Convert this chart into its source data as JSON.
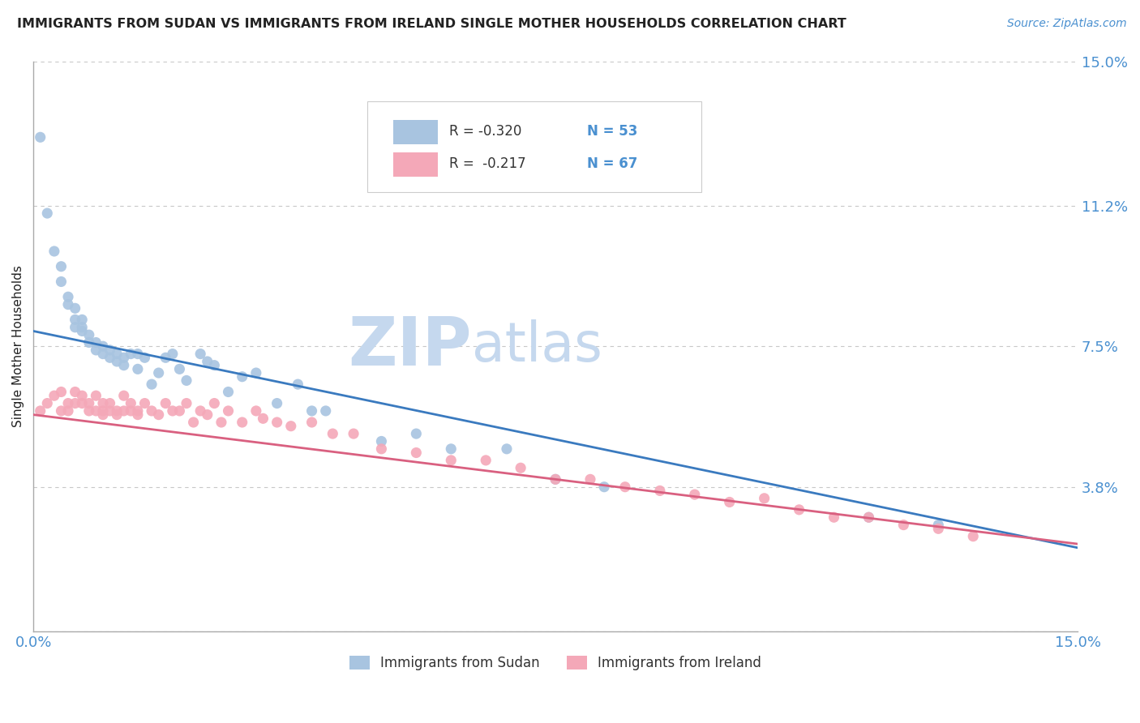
{
  "title": "IMMIGRANTS FROM SUDAN VS IMMIGRANTS FROM IRELAND SINGLE MOTHER HOUSEHOLDS CORRELATION CHART",
  "source_text": "Source: ZipAtlas.com",
  "ylabel": "Single Mother Households",
  "y_tick_values": [
    0.0,
    0.038,
    0.075,
    0.112,
    0.15
  ],
  "y_tick_labels": [
    "",
    "3.8%",
    "7.5%",
    "11.2%",
    "15.0%"
  ],
  "xlim": [
    0.0,
    0.15
  ],
  "ylim": [
    0.0,
    0.15
  ],
  "color_sudan": "#a8c4e0",
  "color_ireland": "#f4a8b8",
  "line_color_sudan": "#3a7abf",
  "line_color_ireland": "#d96080",
  "watermark_zip": "ZIP",
  "watermark_atlas": "atlas",
  "background_color": "#ffffff",
  "grid_color": "#c8c8c8",
  "title_color": "#222222",
  "tick_label_color": "#4a90d0",
  "watermark_color_zip": "#c5d8ee",
  "watermark_color_atlas": "#c5d8ee",
  "legend_bottom_labels": [
    "Immigrants from Sudan",
    "Immigrants from Ireland"
  ],
  "sudan_scatter_x": [
    0.001,
    0.002,
    0.003,
    0.004,
    0.004,
    0.005,
    0.005,
    0.006,
    0.006,
    0.006,
    0.007,
    0.007,
    0.007,
    0.008,
    0.008,
    0.009,
    0.009,
    0.01,
    0.01,
    0.011,
    0.011,
    0.012,
    0.012,
    0.013,
    0.013,
    0.014,
    0.015,
    0.015,
    0.016,
    0.017,
    0.018,
    0.019,
    0.02,
    0.021,
    0.022,
    0.024,
    0.025,
    0.026,
    0.028,
    0.03,
    0.032,
    0.035,
    0.038,
    0.04,
    0.042,
    0.05,
    0.055,
    0.06,
    0.068,
    0.075,
    0.082,
    0.12,
    0.13
  ],
  "sudan_scatter_y": [
    0.13,
    0.11,
    0.1,
    0.096,
    0.092,
    0.088,
    0.086,
    0.085,
    0.082,
    0.08,
    0.082,
    0.08,
    0.079,
    0.078,
    0.076,
    0.076,
    0.074,
    0.075,
    0.073,
    0.074,
    0.072,
    0.073,
    0.071,
    0.072,
    0.07,
    0.073,
    0.073,
    0.069,
    0.072,
    0.065,
    0.068,
    0.072,
    0.073,
    0.069,
    0.066,
    0.073,
    0.071,
    0.07,
    0.063,
    0.067,
    0.068,
    0.06,
    0.065,
    0.058,
    0.058,
    0.05,
    0.052,
    0.048,
    0.048,
    0.04,
    0.038,
    0.03,
    0.028
  ],
  "ireland_scatter_x": [
    0.001,
    0.002,
    0.003,
    0.004,
    0.004,
    0.005,
    0.005,
    0.006,
    0.006,
    0.007,
    0.007,
    0.008,
    0.008,
    0.009,
    0.009,
    0.01,
    0.01,
    0.01,
    0.011,
    0.011,
    0.012,
    0.012,
    0.013,
    0.013,
    0.014,
    0.014,
    0.015,
    0.015,
    0.016,
    0.017,
    0.018,
    0.019,
    0.02,
    0.021,
    0.022,
    0.023,
    0.024,
    0.025,
    0.026,
    0.027,
    0.028,
    0.03,
    0.032,
    0.033,
    0.035,
    0.037,
    0.04,
    0.043,
    0.046,
    0.05,
    0.055,
    0.06,
    0.065,
    0.07,
    0.075,
    0.08,
    0.085,
    0.09,
    0.095,
    0.1,
    0.105,
    0.11,
    0.115,
    0.12,
    0.125,
    0.13,
    0.135
  ],
  "ireland_scatter_y": [
    0.058,
    0.06,
    0.062,
    0.063,
    0.058,
    0.06,
    0.058,
    0.063,
    0.06,
    0.062,
    0.06,
    0.06,
    0.058,
    0.062,
    0.058,
    0.06,
    0.058,
    0.057,
    0.058,
    0.06,
    0.058,
    0.057,
    0.062,
    0.058,
    0.06,
    0.058,
    0.058,
    0.057,
    0.06,
    0.058,
    0.057,
    0.06,
    0.058,
    0.058,
    0.06,
    0.055,
    0.058,
    0.057,
    0.06,
    0.055,
    0.058,
    0.055,
    0.058,
    0.056,
    0.055,
    0.054,
    0.055,
    0.052,
    0.052,
    0.048,
    0.047,
    0.045,
    0.045,
    0.043,
    0.04,
    0.04,
    0.038,
    0.037,
    0.036,
    0.034,
    0.035,
    0.032,
    0.03,
    0.03,
    0.028,
    0.027,
    0.025
  ],
  "sudan_line_x0": 0.0,
  "sudan_line_x1": 0.15,
  "sudan_line_y0": 0.079,
  "sudan_line_y1": 0.022,
  "ireland_line_x0": 0.0,
  "ireland_line_x1": 0.15,
  "ireland_line_y0": 0.057,
  "ireland_line_y1": 0.023
}
